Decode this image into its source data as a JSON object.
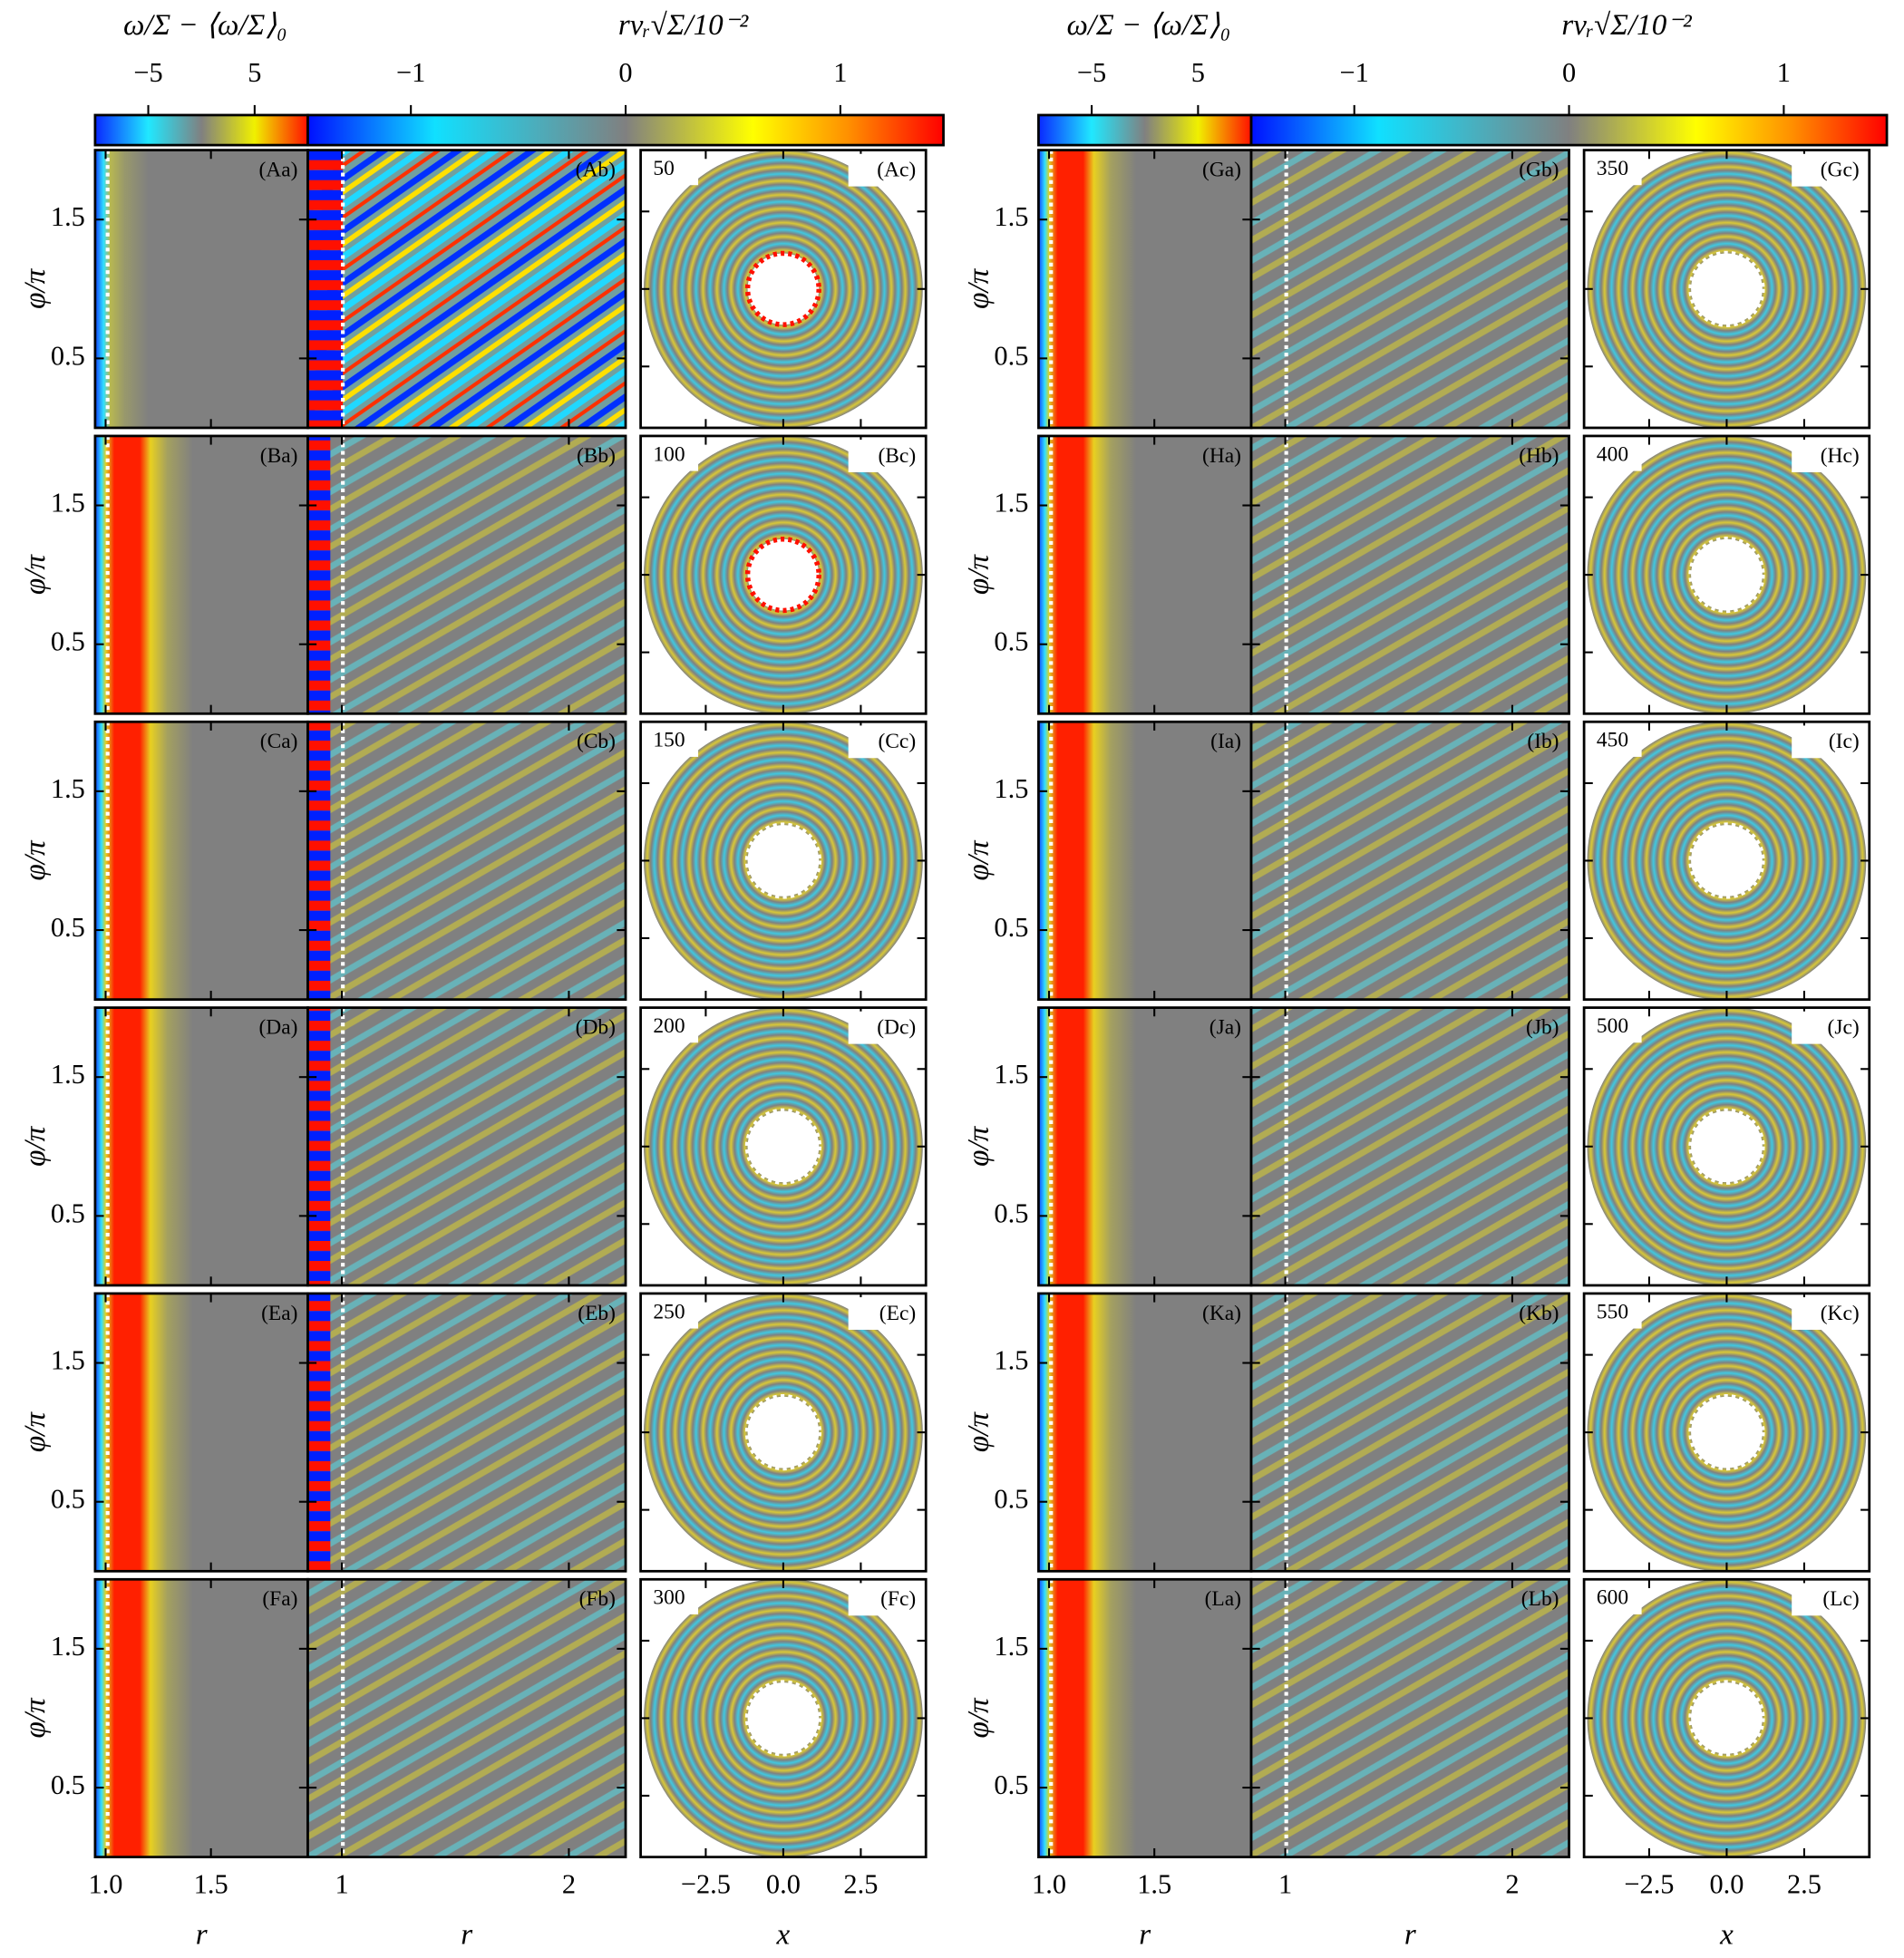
{
  "colorbars": [
    {
      "label": "ω/Σ − ⟨ω/Σ⟩₀",
      "lim": [
        -10,
        10
      ],
      "ticks": [
        {
          "value": -5,
          "label": "−5"
        },
        5
      ]
    },
    {
      "label": "rvᵣ√Σ/10⁻²",
      "lim": [
        -1.48,
        1.48
      ],
      "ticks": [
        {
          "value": -1,
          "label": "−1"
        },
        0,
        1
      ]
    }
  ],
  "ylabel": "φ/π",
  "ylim": [
    0,
    2
  ],
  "yticks": [
    0.5,
    1.5
  ],
  "columns": [
    {
      "xlabel": "r",
      "xlim": [
        0.95,
        1.96
      ],
      "xticks": [
        {
          "value": 1,
          "label": "1.0"
        },
        1.5
      ]
    },
    {
      "xlabel": "r",
      "xlim": [
        0.85,
        2.25
      ],
      "xticks": [
        1,
        2
      ]
    },
    {
      "xlabel": "x",
      "xlim": [
        -4.6,
        4.6
      ],
      "xticks": [
        {
          "value": -2.5,
          "label": "−2.5"
        },
        {
          "value": 0,
          "label": "0.0"
        },
        2.5
      ]
    }
  ],
  "groups": [
    {
      "rows": [
        {
          "time": 50,
          "labels": [
            "(Aa)",
            "(Ab)",
            "(Ac)"
          ]
        },
        {
          "time": 100,
          "labels": [
            "(Ba)",
            "(Bb)",
            "(Bc)"
          ]
        },
        {
          "time": 150,
          "labels": [
            "(Ca)",
            "(Cb)",
            "(Cc)"
          ]
        },
        {
          "time": 200,
          "labels": [
            "(Da)",
            "(Db)",
            "(Dc)"
          ]
        },
        {
          "time": 250,
          "labels": [
            "(Ea)",
            "(Eb)",
            "(Ec)"
          ]
        },
        {
          "time": 300,
          "labels": [
            "(Fa)",
            "(Fb)",
            "(Fc)"
          ]
        }
      ]
    },
    {
      "rows": [
        {
          "time": 350,
          "labels": [
            "(Ga)",
            "(Gb)",
            "(Gc)"
          ]
        },
        {
          "time": 400,
          "labels": [
            "(Ha)",
            "(Hb)",
            "(Hc)"
          ]
        },
        {
          "time": 450,
          "labels": [
            "(Ia)",
            "(Ib)",
            "(Ic)"
          ]
        },
        {
          "time": 500,
          "labels": [
            "(Ja)",
            "(Jb)",
            "(Jc)"
          ]
        },
        {
          "time": 550,
          "labels": [
            "(Ka)",
            "(Kb)",
            "(Kc)"
          ]
        },
        {
          "time": 600,
          "labels": [
            "(La)",
            "(Lb)",
            "(Lc)"
          ]
        }
      ]
    }
  ]
}
